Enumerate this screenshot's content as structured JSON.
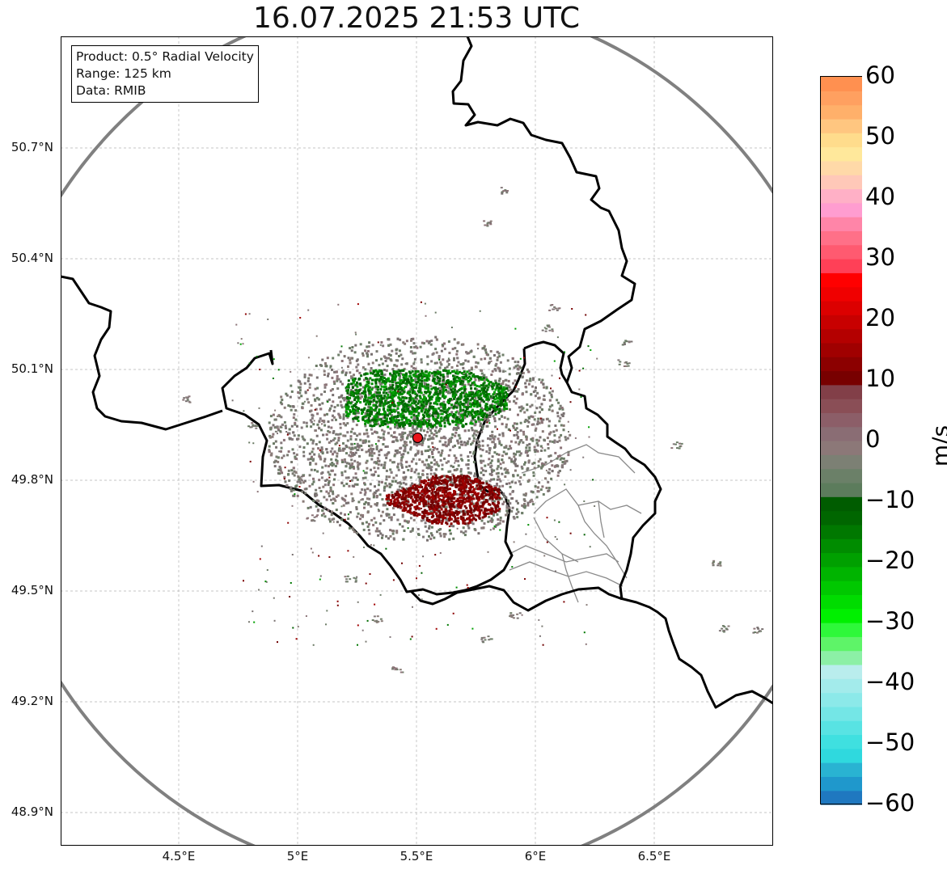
{
  "title": "16.07.2025 21:53 UTC",
  "info_box": {
    "product": "Product: 0.5° Radial Velocity",
    "range": "Range: 125 km",
    "data": "Data: RMIB"
  },
  "map": {
    "type": "radar_velocity_map",
    "lon_range": [
      4.0,
      7.0
    ],
    "lat_range": [
      48.8,
      50.97
    ],
    "gridlines": true,
    "lat_ticks": [
      {
        "value": 50.7,
        "label": "50.7°N"
      },
      {
        "value": 50.4,
        "label": "50.4°N"
      },
      {
        "value": 50.1,
        "label": "50.1°N"
      },
      {
        "value": 49.8,
        "label": "49.8°N"
      },
      {
        "value": 49.5,
        "label": "49.5°N"
      },
      {
        "value": 49.2,
        "label": "49.2°N"
      },
      {
        "value": 48.9,
        "label": "48.9°N"
      }
    ],
    "lon_ticks": [
      {
        "value": 4.5,
        "label": "4.5°E"
      },
      {
        "value": 5.0,
        "label": "5°E"
      },
      {
        "value": 5.5,
        "label": "5.5°E"
      },
      {
        "value": 6.0,
        "label": "6°E"
      },
      {
        "value": 6.5,
        "label": "6.5°E"
      }
    ],
    "radar_site": {
      "lon": 5.505,
      "lat": 49.915,
      "color": "#e8151b"
    },
    "range_ring_km": 125,
    "colors": {
      "border": "#000000",
      "admin_border": "#808080",
      "range_ring": "#808080",
      "grid": "#b4b4b4"
    }
  },
  "colorbar": {
    "label": "m/s",
    "min": -60,
    "max": 60,
    "tick_labels": [
      "60",
      "50",
      "40",
      "30",
      "20",
      "10",
      "0",
      "−10",
      "−20",
      "−30",
      "−40",
      "−50",
      "−60"
    ],
    "colors_bottom_to_top": [
      "#1f78c0",
      "#1f98cc",
      "#29b3d2",
      "#2fd9de",
      "#3fe0e0",
      "#58e3e3",
      "#74e6e6",
      "#8ce9e9",
      "#a3ebeb",
      "#b9eded",
      "#8cf0a6",
      "#5ef468",
      "#2ef83a",
      "#00f000",
      "#00dc00",
      "#00c800",
      "#00b400",
      "#00a000",
      "#008c00",
      "#007800",
      "#006600",
      "#005c00",
      "#5c7c5c",
      "#6b8068",
      "#7c8074",
      "#8c7878",
      "#8a6d74",
      "#8c5e68",
      "#8a4e56",
      "#823f48",
      "#780000",
      "#8c0000",
      "#a00000",
      "#b40000",
      "#c80000",
      "#dc0000",
      "#f00000",
      "#ff0000",
      "#ff4057",
      "#ff5a70",
      "#ff7088",
      "#ff85a8",
      "#ff9dd0",
      "#ffb0c6",
      "#ffc8b8",
      "#ffd9a8",
      "#ffe89b",
      "#ffdc8c",
      "#ffc680",
      "#ffb06a",
      "#ffa060",
      "#ff9050"
    ]
  }
}
